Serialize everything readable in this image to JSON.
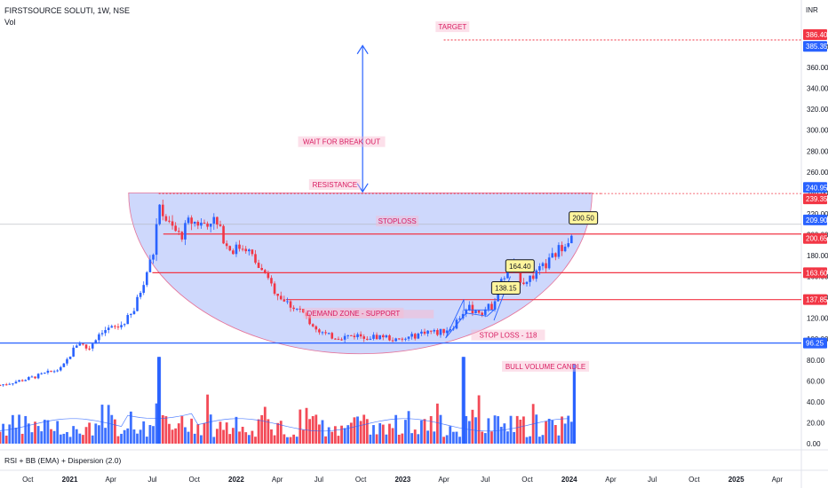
{
  "header": {
    "symbol_line": "FIRSTSOURCE SOLUTI, 1W, NSE",
    "vol_label": "Vol",
    "currency": "INR",
    "indicator_label": "RSI + BB (EMA) + Dispersion (2.0)"
  },
  "colors": {
    "up": "#2962ff",
    "down": "#f23645",
    "annotation_text": "#d81b60",
    "arrow": "#2962ff",
    "cup_fill": "#c5d1fb",
    "level_red": "#f23645",
    "level_blue": "#2962ff",
    "badge_fill": "#fff59d"
  },
  "chart_data": {
    "type": "candlestick",
    "timeframe": "1W",
    "ylim": [
      0,
      410
    ],
    "y_ticks": [
      "0.00",
      "20.00",
      "40.00",
      "60.00",
      "80.00",
      "100.00",
      "120.00",
      "140.00",
      "160.00",
      "180.00",
      "200.00",
      "220.00",
      "240.00",
      "260.00",
      "280.00",
      "300.00",
      "320.00",
      "340.00",
      "360.00",
      "380.00"
    ],
    "x_ticks": [
      {
        "label": "Oct",
        "date": "2020-10-01"
      },
      {
        "label": "2021",
        "date": "2021-01-01"
      },
      {
        "label": "Apr",
        "date": "2021-04-01"
      },
      {
        "label": "Jul",
        "date": "2021-07-01"
      },
      {
        "label": "Oct",
        "date": "2021-10-01"
      },
      {
        "label": "2022",
        "date": "2022-01-01"
      },
      {
        "label": "Apr",
        "date": "2022-04-01"
      },
      {
        "label": "Jul",
        "date": "2022-07-01"
      },
      {
        "label": "Oct",
        "date": "2022-10-01"
      },
      {
        "label": "2023",
        "date": "2023-01-01"
      },
      {
        "label": "Apr",
        "date": "2023-04-01"
      },
      {
        "label": "Jul",
        "date": "2023-07-01"
      },
      {
        "label": "Oct",
        "date": "2023-10-01"
      },
      {
        "label": "2024",
        "date": "2024-01-01"
      },
      {
        "label": "Apr",
        "date": "2024-04-01"
      },
      {
        "label": "Jul",
        "date": "2024-07-01"
      },
      {
        "label": "Oct",
        "date": "2024-10-01"
      },
      {
        "label": "2025",
        "date": "2025-01-01"
      },
      {
        "label": "Apr",
        "date": "2025-04-01"
      }
    ],
    "price_path": [
      [
        "2020-08-01",
        56
      ],
      [
        "2020-10-01",
        62
      ],
      [
        "2020-12-15",
        72
      ],
      [
        "2021-01-20",
        98
      ],
      [
        "2021-02-10",
        90
      ],
      [
        "2021-03-10",
        108
      ],
      [
        "2021-04-20",
        112
      ],
      [
        "2021-05-20",
        125
      ],
      [
        "2021-06-15",
        160
      ],
      [
        "2021-07-05",
        185
      ],
      [
        "2021-07-15",
        232
      ],
      [
        "2021-08-05",
        210
      ],
      [
        "2021-09-01",
        198
      ],
      [
        "2021-09-20",
        213
      ],
      [
        "2021-10-20",
        210
      ],
      [
        "2021-11-10",
        216
      ],
      [
        "2021-12-20",
        185
      ],
      [
        "2022-01-20",
        190
      ],
      [
        "2022-02-20",
        168
      ],
      [
        "2022-03-20",
        150
      ],
      [
        "2022-04-20",
        135
      ],
      [
        "2022-05-20",
        128
      ],
      [
        "2022-06-20",
        112
      ],
      [
        "2022-07-20",
        103
      ],
      [
        "2022-08-20",
        102
      ],
      [
        "2022-09-20",
        104
      ],
      [
        "2022-10-20",
        102
      ],
      [
        "2022-11-20",
        103
      ],
      [
        "2022-12-20",
        98
      ],
      [
        "2023-01-20",
        102
      ],
      [
        "2023-02-20",
        108
      ],
      [
        "2023-03-20",
        106
      ],
      [
        "2023-04-20",
        112
      ],
      [
        "2023-05-20",
        130
      ],
      [
        "2023-06-20",
        126
      ],
      [
        "2023-07-15",
        132
      ],
      [
        "2023-08-10",
        160
      ],
      [
        "2023-09-01",
        170
      ],
      [
        "2023-09-20",
        155
      ],
      [
        "2023-10-20",
        162
      ],
      [
        "2023-11-20",
        175
      ],
      [
        "2023-12-20",
        192
      ],
      [
        "2024-01-05",
        200
      ],
      [
        "2024-01-12",
        210
      ]
    ],
    "price_levels": [
      {
        "label": "386.40",
        "price": 386.4,
        "color": "red",
        "line": "dotted",
        "extent": "right"
      },
      {
        "label": "385.35",
        "price": 385.35,
        "color": "blue",
        "line": "none"
      },
      {
        "label": "240.95",
        "price": 240.95,
        "color": "blue",
        "line": "none"
      },
      {
        "label": "239.35",
        "price": 239.35,
        "color": "red",
        "line": "dotted",
        "extent": "resistance"
      },
      {
        "label": "209.90",
        "price": 209.9,
        "color": "blue",
        "line": "thin"
      },
      {
        "label": "200.65",
        "price": 200.65,
        "color": "red",
        "line": "solid"
      },
      {
        "label": "163.60",
        "price": 163.6,
        "color": "red",
        "line": "solid"
      },
      {
        "label": "137.85",
        "price": 137.85,
        "color": "red",
        "line": "solid"
      },
      {
        "label": "96.25",
        "price": 96.25,
        "color": "blue",
        "line": "solid"
      }
    ],
    "annotations": [
      {
        "text": "TARGET",
        "date": "2023-04-20",
        "price": 399
      },
      {
        "text": "WAIT FOR BREAK OUT",
        "date": "2022-08-20",
        "price": 289
      },
      {
        "text": "RESISTANCE",
        "date": "2022-08-05",
        "price": 248
      },
      {
        "text": "STOPLOSS",
        "date": "2022-12-20",
        "price": 213
      },
      {
        "text": "DEMAND ZONE - SUPPORT",
        "date": "2022-09-15",
        "price": 125
      },
      {
        "text": "STOP LOSS - 118",
        "date": "2023-08-20",
        "price": 104
      },
      {
        "text": "BULL VOLUME CANDLE",
        "date": "2023-11-10",
        "price": 74
      }
    ],
    "badges": [
      {
        "text": "200.50",
        "date": "2024-02-01",
        "price": 216
      },
      {
        "text": "164.40",
        "date": "2023-09-15",
        "price": 170
      },
      {
        "text": "138.15",
        "date": "2023-08-15",
        "price": 149
      }
    ],
    "volume_highlights": [
      {
        "date": "2021-07-15",
        "value": 83
      },
      {
        "date": "2023-05-15",
        "value": 83
      },
      {
        "date": "2024-01-12",
        "value": 76
      }
    ]
  }
}
